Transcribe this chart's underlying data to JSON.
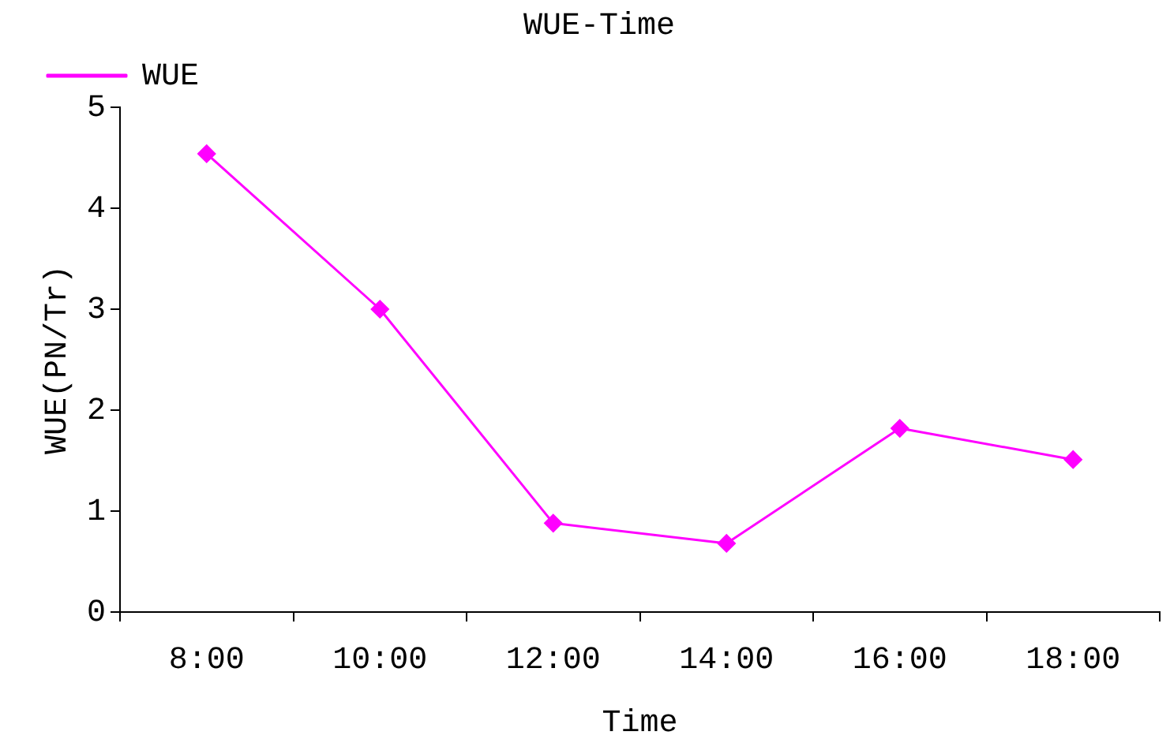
{
  "chart_data": {
    "type": "line",
    "title": "WUE-Time",
    "xlabel": "Time",
    "ylabel": "WUE(PN/Tr)",
    "categories": [
      "8:00",
      "10:00",
      "12:00",
      "14:00",
      "16:00",
      "18:00"
    ],
    "series": [
      {
        "name": "WUE",
        "color": "#ff00ff",
        "values": [
          4.54,
          3.0,
          0.88,
          0.68,
          1.82,
          1.51
        ]
      }
    ],
    "ylim": [
      0,
      5
    ],
    "yticks": [
      0,
      1,
      2,
      3,
      4,
      5
    ],
    "grid": false,
    "legend": "top left",
    "marker": "diamond",
    "line_style": "solid"
  }
}
